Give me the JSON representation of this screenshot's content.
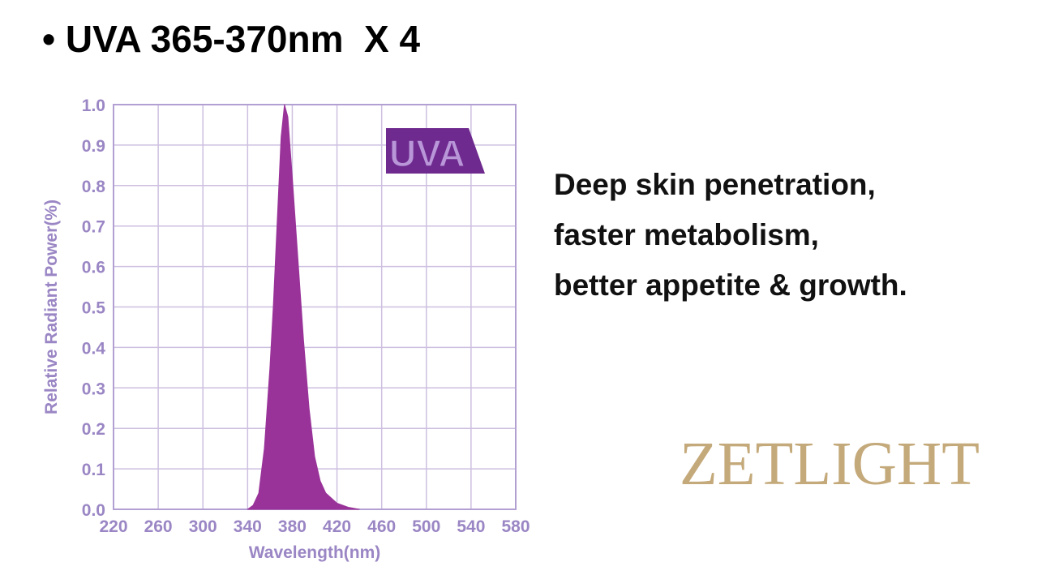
{
  "heading": "• UVA 365-370nm  X 4",
  "chart_data": {
    "type": "area",
    "x": [
      340,
      345,
      350,
      355,
      360,
      363,
      365,
      370,
      373,
      376,
      380,
      385,
      388,
      390,
      395,
      400,
      405,
      410,
      420,
      430,
      440
    ],
    "values": [
      0,
      0.01,
      0.04,
      0.15,
      0.35,
      0.5,
      0.62,
      0.92,
      1.0,
      0.97,
      0.82,
      0.62,
      0.5,
      0.42,
      0.25,
      0.13,
      0.07,
      0.04,
      0.015,
      0.005,
      0
    ],
    "color": "#993399",
    "xlim": [
      220,
      580
    ],
    "xticks": [
      220,
      260,
      300,
      340,
      380,
      420,
      460,
      500,
      540,
      580
    ],
    "ylim": [
      0,
      1
    ],
    "yticks": [
      {
        "value": 0,
        "label": "0.0"
      },
      0.1,
      0.2,
      0.3,
      0.4,
      0.5,
      0.6,
      0.7,
      0.8,
      0.9,
      {
        "value": 1,
        "label": "1.0"
      }
    ],
    "grid": true,
    "xlabel": "Wavelength(nm)",
    "ylabel": "Relative Radiant Power(%)",
    "annotation": "UVA"
  },
  "description": [
    "Deep skin penetration,",
    "faster metabolism,",
    "better appetite & growth."
  ],
  "brand": "ZETLIGHT"
}
